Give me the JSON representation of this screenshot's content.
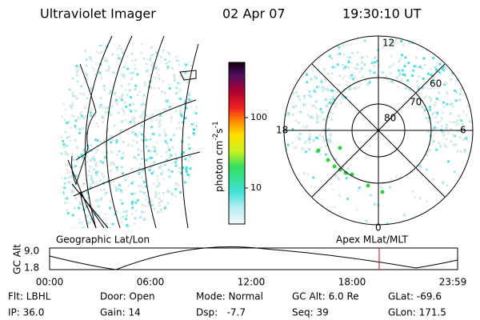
{
  "header": {
    "title": "Ultraviolet Imager",
    "date": "02 Apr 07",
    "time": "19:30:10 UT"
  },
  "geo_panel": {
    "caption": "Geographic Lat/Lon"
  },
  "colorbar": {
    "unit": "photon cm",
    "exp1": "-2",
    "mid": "s",
    "exp2": "-1",
    "ticks": [
      "100",
      "10"
    ]
  },
  "polar_panel": {
    "caption": "Apex MLat/MLT",
    "mlt": [
      "12",
      "18",
      "6",
      "0"
    ],
    "mlat": [
      "60",
      "70",
      "80"
    ]
  },
  "timeline": {
    "ylabel": "GC Alt",
    "yticks": [
      "9.0",
      "1.8"
    ],
    "xticks": [
      "00:00",
      "06:00",
      "12:00",
      "18:00",
      "23:59"
    ]
  },
  "info": {
    "rows": [
      [
        "Flt: LBHL",
        "Door: Open",
        "Mode: Normal",
        "GC Alt: 6.0 Re",
        "GLat: -69.6"
      ],
      [
        "IP: 36.0",
        "Gain: 14",
        "Dsp:   -7.7",
        "Seq: 39",
        "GLon: 171.5"
      ]
    ]
  }
}
